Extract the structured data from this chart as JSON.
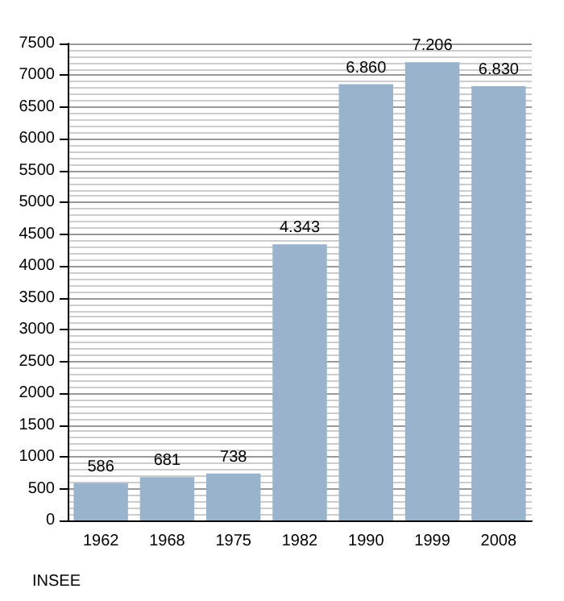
{
  "chart_data": {
    "type": "bar",
    "categories": [
      "1962",
      "1968",
      "1975",
      "1982",
      "1990",
      "1999",
      "2008"
    ],
    "values": [
      586,
      681,
      738,
      4343,
      6860,
      7206,
      6830
    ],
    "value_labels": [
      "586",
      "681",
      "738",
      "4.343",
      "6.860",
      "7.206",
      "6.830"
    ],
    "color": "#9ab3cc",
    "ylim": [
      0,
      7500
    ],
    "yticks": [
      0,
      500,
      1000,
      1500,
      2000,
      2500,
      3000,
      3500,
      4000,
      4500,
      5000,
      5500,
      6000,
      6500,
      7000,
      7500
    ],
    "grid": true,
    "annotations": [
      "INSEE"
    ]
  }
}
